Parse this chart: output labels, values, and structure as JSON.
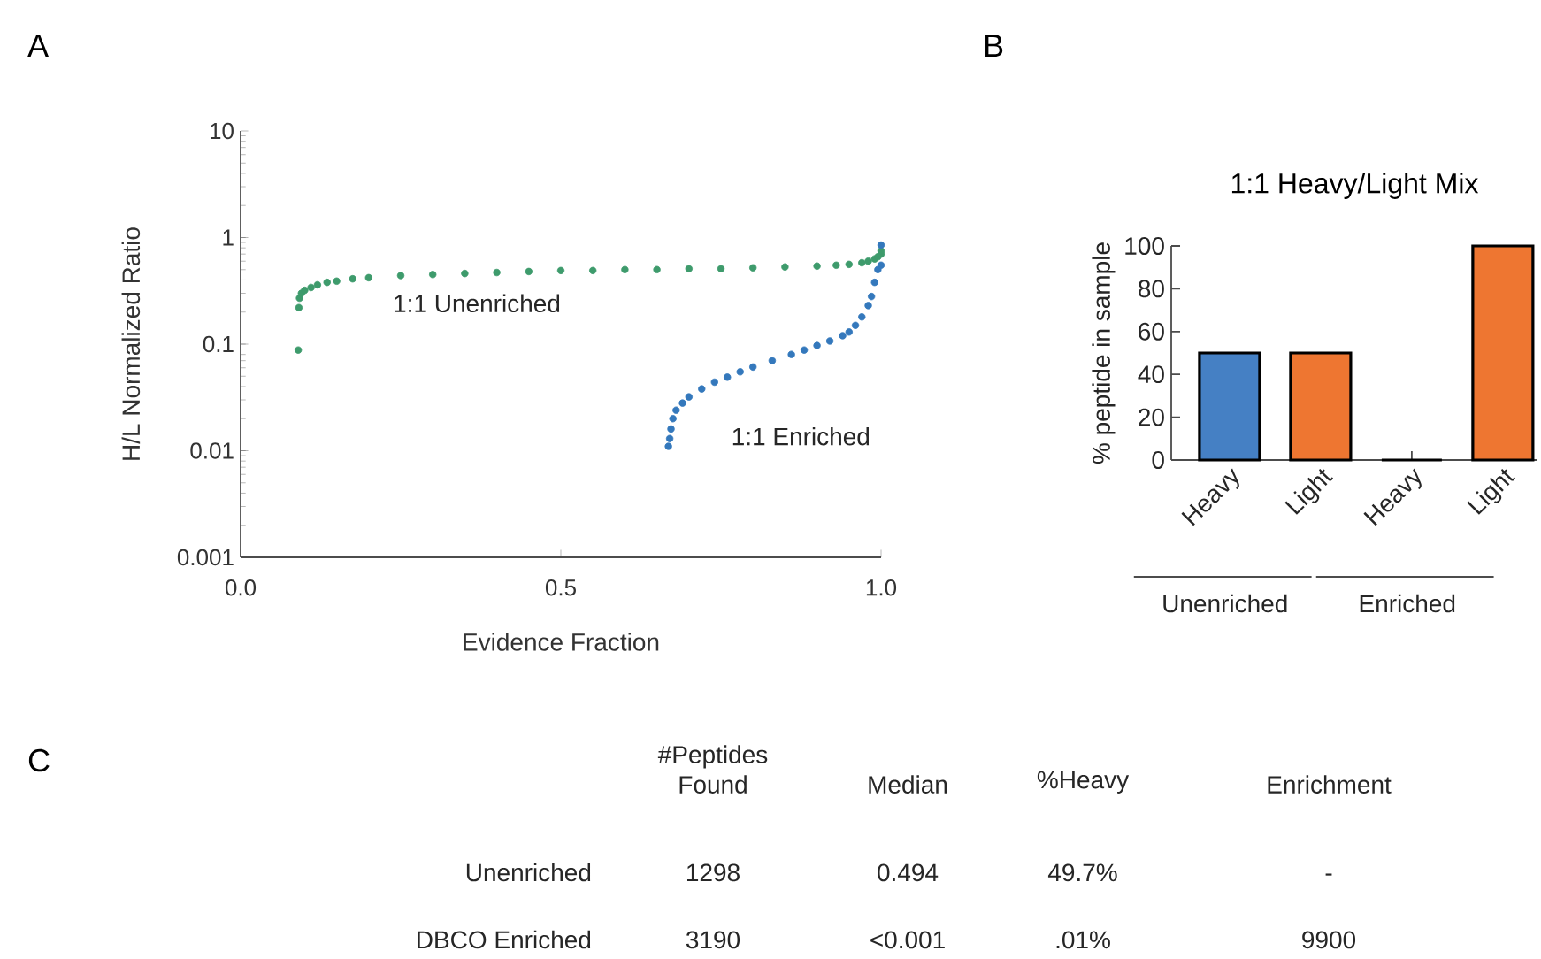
{
  "chart_data": [
    {
      "type": "scatter",
      "annotations": [
        "A"
      ],
      "xlabel": "Evidence Fraction",
      "ylabel": "H/L Normalized Ratio",
      "log": "y",
      "marker": "circle",
      "grid": false,
      "legend": false,
      "xlim": [
        0,
        1
      ],
      "ylim": [
        0.001,
        10
      ],
      "xticks": [
        {
          "value": 0,
          "label": "0.0"
        },
        {
          "value": 0.5,
          "label": "0.5"
        },
        {
          "value": 1,
          "label": "1.0"
        }
      ],
      "yticks": [
        0.001,
        0.01,
        0.1,
        1,
        10
      ],
      "series": [
        {
          "name": "1:1 Unenriched",
          "color": "#3e9b6c",
          "x": [
            0.09,
            0.091,
            0.092,
            0.095,
            0.1,
            0.11,
            0.12,
            0.135,
            0.15,
            0.175,
            0.2,
            0.25,
            0.3,
            0.35,
            0.4,
            0.45,
            0.5,
            0.55,
            0.6,
            0.65,
            0.7,
            0.75,
            0.8,
            0.85,
            0.9,
            0.93,
            0.95,
            0.97,
            0.98,
            0.99,
            0.995,
            1.0,
            1.0
          ],
          "values": [
            0.088,
            0.22,
            0.27,
            0.3,
            0.32,
            0.34,
            0.36,
            0.38,
            0.39,
            0.41,
            0.42,
            0.44,
            0.45,
            0.46,
            0.47,
            0.48,
            0.49,
            0.49,
            0.5,
            0.5,
            0.51,
            0.51,
            0.52,
            0.53,
            0.54,
            0.55,
            0.56,
            0.58,
            0.6,
            0.63,
            0.66,
            0.7,
            0.75
          ]
        },
        {
          "name": "1:1 Enriched",
          "color": "#3478bc",
          "x": [
            0.668,
            0.67,
            0.672,
            0.675,
            0.68,
            0.69,
            0.7,
            0.72,
            0.74,
            0.76,
            0.78,
            0.8,
            0.83,
            0.86,
            0.88,
            0.9,
            0.92,
            0.94,
            0.95,
            0.96,
            0.97,
            0.98,
            0.985,
            0.99,
            0.995,
            1.0,
            1.0
          ],
          "values": [
            0.011,
            0.013,
            0.016,
            0.02,
            0.024,
            0.028,
            0.032,
            0.038,
            0.044,
            0.049,
            0.055,
            0.061,
            0.07,
            0.08,
            0.088,
            0.097,
            0.107,
            0.12,
            0.13,
            0.15,
            0.18,
            0.23,
            0.28,
            0.38,
            0.5,
            0.55,
            0.85
          ]
        }
      ]
    },
    {
      "type": "bar",
      "title": "1:1 Heavy/Light Mix",
      "ylabel": "% peptide in sample",
      "annotations": [
        "B",
        "Unenriched",
        "Enriched"
      ],
      "grid": false,
      "legend": false,
      "categories": [
        "Heavy",
        "Light",
        "Heavy",
        "Light"
      ],
      "values": [
        50,
        50,
        0,
        100
      ],
      "colors": [
        "#4580c4",
        "#ee7631",
        "#4580c4",
        "#ee7631"
      ],
      "ylim": [
        0,
        100
      ],
      "yticks": [
        0,
        20,
        40,
        60,
        80,
        100
      ]
    },
    {
      "type": "other",
      "annotations": [
        "C",
        "#Peptides Found",
        "Median",
        "%Heavy",
        "Enrichment",
        "Unenriched",
        "1298",
        "0.494",
        "49.7%",
        "-",
        "DBCO Enriched",
        "3190",
        "<0.001",
        ".01%",
        "9900"
      ]
    }
  ]
}
